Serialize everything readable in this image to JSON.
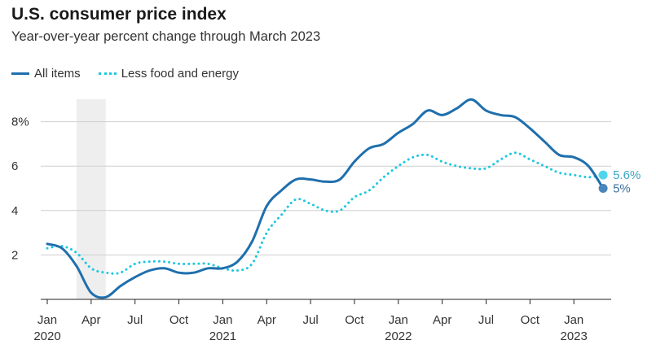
{
  "chart_data": {
    "type": "line",
    "title": "U.S. consumer price index",
    "subtitle": "Year-over-year percent change through March 2023",
    "ylabel": "",
    "xlabel": "",
    "ylim": [
      0,
      9.5
    ],
    "yticks": [
      {
        "value": 2,
        "label": "2"
      },
      {
        "value": 4,
        "label": "4"
      },
      {
        "value": 6,
        "label": "6"
      },
      {
        "value": 8,
        "label": "8%"
      }
    ],
    "xticks": [
      {
        "index": 0,
        "label": "Jan",
        "year": "2020"
      },
      {
        "index": 3,
        "label": "Apr",
        "year": ""
      },
      {
        "index": 6,
        "label": "Jul",
        "year": ""
      },
      {
        "index": 9,
        "label": "Oct",
        "year": ""
      },
      {
        "index": 12,
        "label": "Jan",
        "year": "2021"
      },
      {
        "index": 15,
        "label": "Apr",
        "year": ""
      },
      {
        "index": 18,
        "label": "Jul",
        "year": ""
      },
      {
        "index": 21,
        "label": "Oct",
        "year": ""
      },
      {
        "index": 24,
        "label": "Jan",
        "year": "2022"
      },
      {
        "index": 27,
        "label": "Apr",
        "year": ""
      },
      {
        "index": 30,
        "label": "Jul",
        "year": ""
      },
      {
        "index": 33,
        "label": "Oct",
        "year": ""
      },
      {
        "index": 36,
        "label": "Jan",
        "year": "2023"
      }
    ],
    "shaded_region": {
      "start_index": 2,
      "end_index": 4
    },
    "x": [
      "2020-01",
      "2020-02",
      "2020-03",
      "2020-04",
      "2020-05",
      "2020-06",
      "2020-07",
      "2020-08",
      "2020-09",
      "2020-10",
      "2020-11",
      "2020-12",
      "2021-01",
      "2021-02",
      "2021-03",
      "2021-04",
      "2021-05",
      "2021-06",
      "2021-07",
      "2021-08",
      "2021-09",
      "2021-10",
      "2021-11",
      "2021-12",
      "2022-01",
      "2022-02",
      "2022-03",
      "2022-04",
      "2022-05",
      "2022-06",
      "2022-07",
      "2022-08",
      "2022-09",
      "2022-10",
      "2022-11",
      "2022-12",
      "2023-01",
      "2023-02",
      "2023-03"
    ],
    "series": [
      {
        "name": "All items",
        "color": "#1f6fad",
        "style": "solid",
        "end_label": "5%",
        "values": [
          2.5,
          2.3,
          1.5,
          0.3,
          0.1,
          0.6,
          1.0,
          1.3,
          1.4,
          1.2,
          1.2,
          1.4,
          1.4,
          1.7,
          2.6,
          4.2,
          4.9,
          5.4,
          5.4,
          5.3,
          5.4,
          6.2,
          6.8,
          7.0,
          7.5,
          7.9,
          8.5,
          8.3,
          8.6,
          9.0,
          8.5,
          8.3,
          8.2,
          7.7,
          7.1,
          6.5,
          6.4,
          6.0,
          5.0
        ]
      },
      {
        "name": "Less food and energy",
        "color": "#1ec8df",
        "style": "dotted",
        "end_label": "5.6%",
        "values": [
          2.3,
          2.4,
          2.1,
          1.4,
          1.2,
          1.2,
          1.6,
          1.7,
          1.7,
          1.6,
          1.6,
          1.6,
          1.4,
          1.3,
          1.6,
          3.0,
          3.8,
          4.5,
          4.3,
          4.0,
          4.0,
          4.6,
          4.9,
          5.5,
          6.0,
          6.4,
          6.5,
          6.2,
          6.0,
          5.9,
          5.9,
          6.3,
          6.6,
          6.3,
          6.0,
          5.7,
          5.6,
          5.5,
          5.6
        ]
      }
    ]
  }
}
